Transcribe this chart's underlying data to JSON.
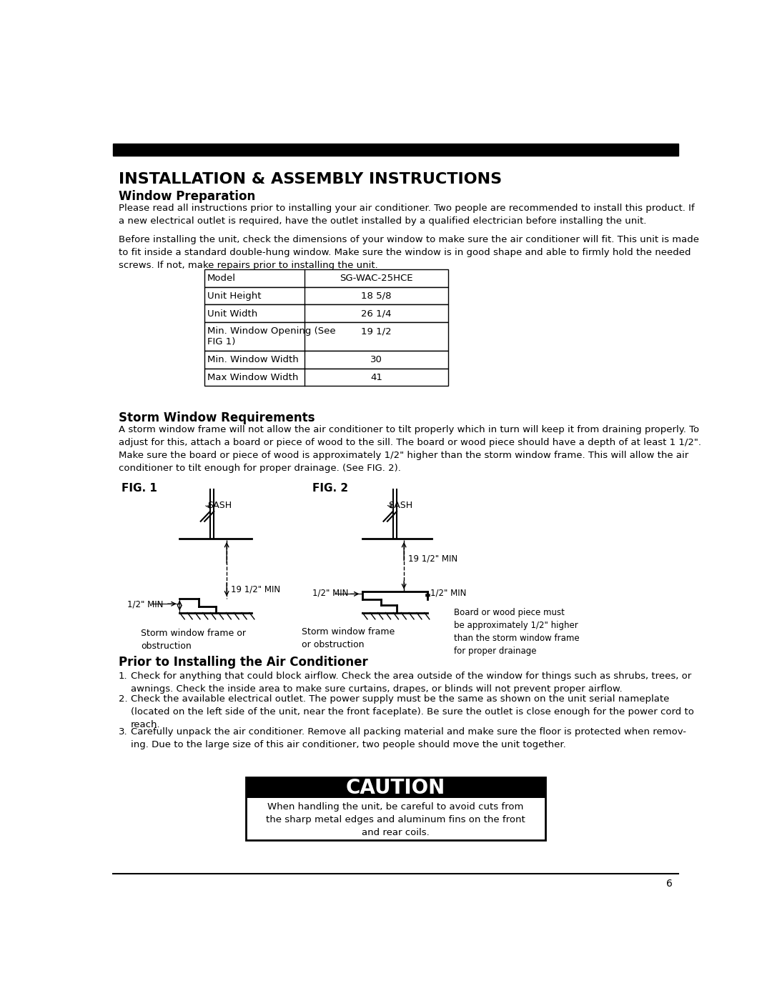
{
  "title_bar_color": "#000000",
  "bg_color": "#ffffff",
  "text_color": "#000000",
  "main_title": "INSTALLATION & ASSEMBLY INSTRUCTIONS",
  "section1_title": "Window Preparation",
  "para1": "Please read all instructions prior to installing your air conditioner. Two people are recommended to install this product. If\na new electrical outlet is required, have the outlet installed by a qualified electrician before installing the unit.",
  "para2": "Before installing the unit, check the dimensions of your window to make sure the air conditioner will fit. This unit is made\nto fit inside a standard double-hung window. Make sure the window is in good shape and able to firmly hold the needed\nscrews. If not, make repairs prior to installing the unit.",
  "table_rows": [
    [
      "Model",
      "SG-WAC-25HCE"
    ],
    [
      "Unit Height",
      "18 5/8"
    ],
    [
      "Unit Width",
      "26 1/4"
    ],
    [
      "Min. Window Opening (See\nFIG 1)",
      "19 1/2"
    ],
    [
      "Min. Window Width",
      "30"
    ],
    [
      "Max Window Width",
      "41"
    ]
  ],
  "section2_title": "Storm Window Requirements",
  "storm_para": "A storm window frame will not allow the air conditioner to tilt properly which in turn will keep it from draining properly. To\nadjust for this, attach a board or piece of wood to the sill. The board or wood piece should have a depth of at least 1 1/2\".\nMake sure the board or piece of wood is approximately 1/2\" higher than the storm window frame. This will allow the air\nconditioner to tilt enough for proper drainage. (See FIG. 2).",
  "section3_title": "Prior to Installing the Air Conditioner",
  "prior_items": [
    "Check for anything that could block airflow. Check the area outside of the window for things such as shrubs, trees, or\nawnings. Check the inside area to make sure curtains, drapes, or blinds will not prevent proper airflow.",
    "Check the available electrical outlet. The power supply must be the same as shown on the unit serial nameplate\n(located on the left side of the unit, near the front faceplate). Be sure the outlet is close enough for the power cord to\nreach.",
    "Carefully unpack the air conditioner. Remove all packing material and make sure the floor is protected when remov-\ning. Due to the large size of this air conditioner, two people should move the unit together."
  ],
  "caution_title": "CAUTION",
  "caution_text": "When handling the unit, be careful to avoid cuts from\nthe sharp metal edges and aluminum fins on the front\nand rear coils.",
  "page_number": "6"
}
